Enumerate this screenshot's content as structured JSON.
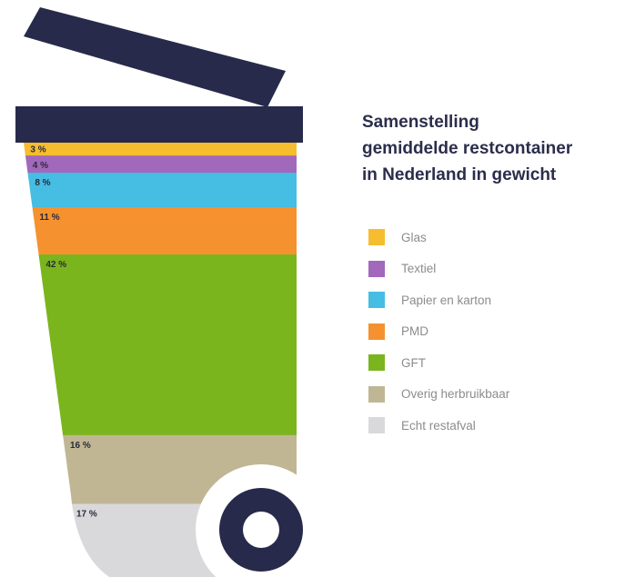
{
  "chart_data": {
    "type": "bar",
    "title": [
      "Samenstelling",
      "gemiddelde restcontainer",
      "in Nederland in gewicht"
    ],
    "categories": [
      "Glas",
      "Textiel",
      "Papier en karton",
      "PMD",
      "GFT",
      "Overig herbruikbaar",
      "Echt restafval"
    ],
    "values": [
      3,
      4,
      8,
      11,
      42,
      16,
      17
    ],
    "value_labels": [
      "3 %",
      "4 %",
      "8 %",
      "11 %",
      "42 %",
      "16 %",
      "17 %"
    ],
    "colors": [
      "#f6bd2e",
      "#a268bc",
      "#46bde3",
      "#f5922f",
      "#7ab51d",
      "#c0b694",
      "#d9d9dc"
    ],
    "stacked": true,
    "orientation": "vertical",
    "legend": "right"
  },
  "illustration": {
    "bin_color": "#272a4a",
    "wheel_color": "#272a4a"
  }
}
